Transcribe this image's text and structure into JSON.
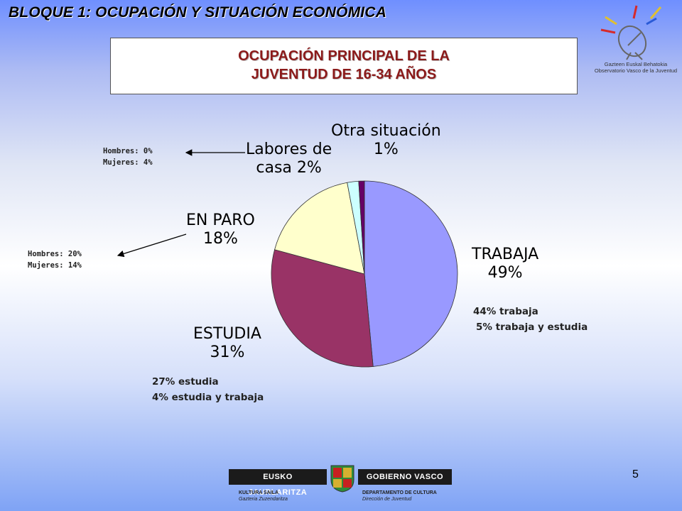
{
  "header": {
    "title": "BLOQUE 1: OCUPACIÓN Y SITUACIÓN ECONÓMICA"
  },
  "title_box": {
    "line1": "OCUPACIÓN PRINCIPAL DE LA",
    "line2": "JUVENTUD DE 16-34 AÑOS"
  },
  "logo": {
    "line1": "Gazteen Euskal Behatokia",
    "line2": "Observatorio Vasco de la Juventud"
  },
  "chart_data": {
    "type": "pie",
    "slices": [
      {
        "label": "TRABAJA",
        "value": 49,
        "value_label": "49%",
        "color": "#9999ff"
      },
      {
        "label": "ESTUDIA",
        "value": 31,
        "value_label": "31%",
        "color": "#993366"
      },
      {
        "label": "EN PARO",
        "value": 18,
        "value_label": "18%",
        "color": "#ffffcc"
      },
      {
        "label": "Labores de casa",
        "value": 2,
        "value_label": "Labores de casa 2%",
        "color": "#ccffff"
      },
      {
        "label": "Otra situación",
        "value": 1,
        "value_label": "1%",
        "color": "#660066"
      }
    ],
    "annotations": {
      "trabaja": [
        "44% trabaja",
        "5% trabaja y estudia"
      ],
      "estudia": [
        "27% estudia",
        "4% estudia y trabaja"
      ],
      "en_paro": [
        "Hombres: 20%",
        "Mujeres: 14%"
      ],
      "labores": [
        "Hombres: 0%",
        "Mujeres: 4%"
      ]
    }
  },
  "labels": {
    "trabaja_name": "TRABAJA",
    "estudia_name": "ESTUDIA",
    "en_paro_name": "EN PARO",
    "labores_line1": "Labores de",
    "labores_line2": "casa 2%",
    "otra_line1": "Otra situación"
  },
  "footer": {
    "left_label": "EUSKO JAURLARITZA",
    "right_label": "GOBIERNO VASCO",
    "left_sub1": "KULTURA SAILA",
    "left_sub2": "Gazteria Zuzendaritza",
    "right_sub1": "DEPARTAMENTO DE CULTURA",
    "right_sub2": "Dirección de Juventud",
    "page_number": "5"
  }
}
